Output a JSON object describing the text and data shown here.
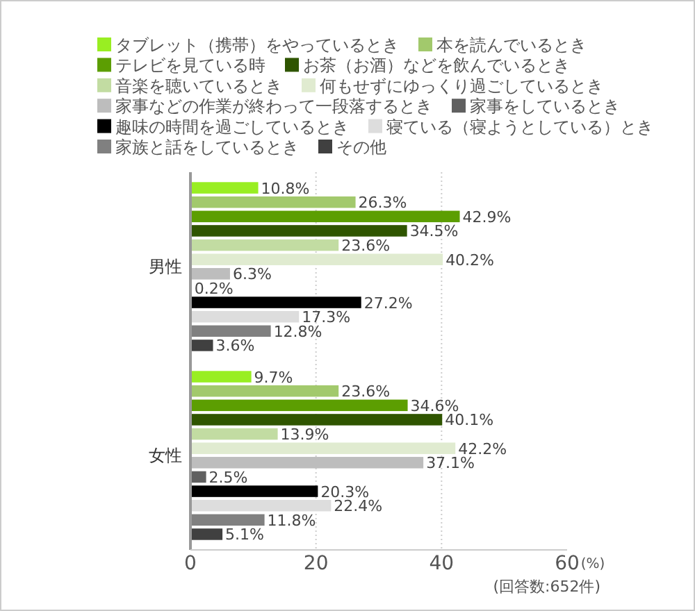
{
  "chart_data": {
    "type": "bar",
    "orientation": "horizontal",
    "categories": [
      "男性",
      "女性"
    ],
    "series": [
      {
        "name": "タブレット（携帯）をやっているとき",
        "color": "#99ee22",
        "values": [
          10.8,
          9.7
        ],
        "value_labels": [
          "10.8%",
          "9.7%"
        ]
      },
      {
        "name": "本を読んでいるとき",
        "color": "#a2c96c",
        "values": [
          26.3,
          23.6
        ],
        "value_labels": [
          "26.3%",
          "23.6%"
        ]
      },
      {
        "name": "テレビを見ている時",
        "color": "#5c9e02",
        "values": [
          42.9,
          34.6
        ],
        "value_labels": [
          "42.9%",
          "34.6%"
        ]
      },
      {
        "name": "お茶（お酒）などを飲んでいるとき",
        "color": "#2f5500",
        "values": [
          34.5,
          40.1
        ],
        "value_labels": [
          "34.5%",
          "40.1%"
        ]
      },
      {
        "name": "音楽を聴いているとき",
        "color": "#c2dca2",
        "values": [
          23.6,
          13.9
        ],
        "value_labels": [
          "23.6%",
          "13.9%"
        ]
      },
      {
        "name": "何もせずにゆっくり過ごしているとき",
        "color": "#e0ebd0",
        "values": [
          40.2,
          42.2
        ],
        "value_labels": [
          "40.2%",
          "42.2%"
        ]
      },
      {
        "name": "家事などの作業が終わって一段落するとき",
        "color": "#bdbdbd",
        "values": [
          6.3,
          37.1
        ],
        "value_labels": [
          "6.3%",
          "37.1%"
        ]
      },
      {
        "name": "家事をしているとき",
        "color": "#606060",
        "values": [
          0.2,
          2.5
        ],
        "value_labels": [
          "0.2%",
          "2.5%"
        ]
      },
      {
        "name": "趣味の時間を過ごしているとき",
        "color": "#000000",
        "values": [
          27.2,
          20.3
        ],
        "value_labels": [
          "27.2%",
          "20.3%"
        ]
      },
      {
        "name": "寝ている（寝ようとしている）とき",
        "color": "#dddddd",
        "values": [
          17.3,
          22.4
        ],
        "value_labels": [
          "17.3%",
          "22.4%"
        ]
      },
      {
        "name": "家族と話をしているとき",
        "color": "#808080",
        "values": [
          12.8,
          11.8
        ],
        "value_labels": [
          "12.8%",
          "11.8%"
        ]
      },
      {
        "name": "その他",
        "color": "#404040",
        "values": [
          3.6,
          5.1
        ],
        "value_labels": [
          "3.6%",
          "5.1%"
        ]
      }
    ],
    "xlim": [
      0,
      60
    ],
    "xticks": [
      0,
      20,
      40,
      60
    ],
    "xlabel": "(%)",
    "grid": "x",
    "legend": "top",
    "annotations": [
      "(回答数:652件)"
    ]
  }
}
